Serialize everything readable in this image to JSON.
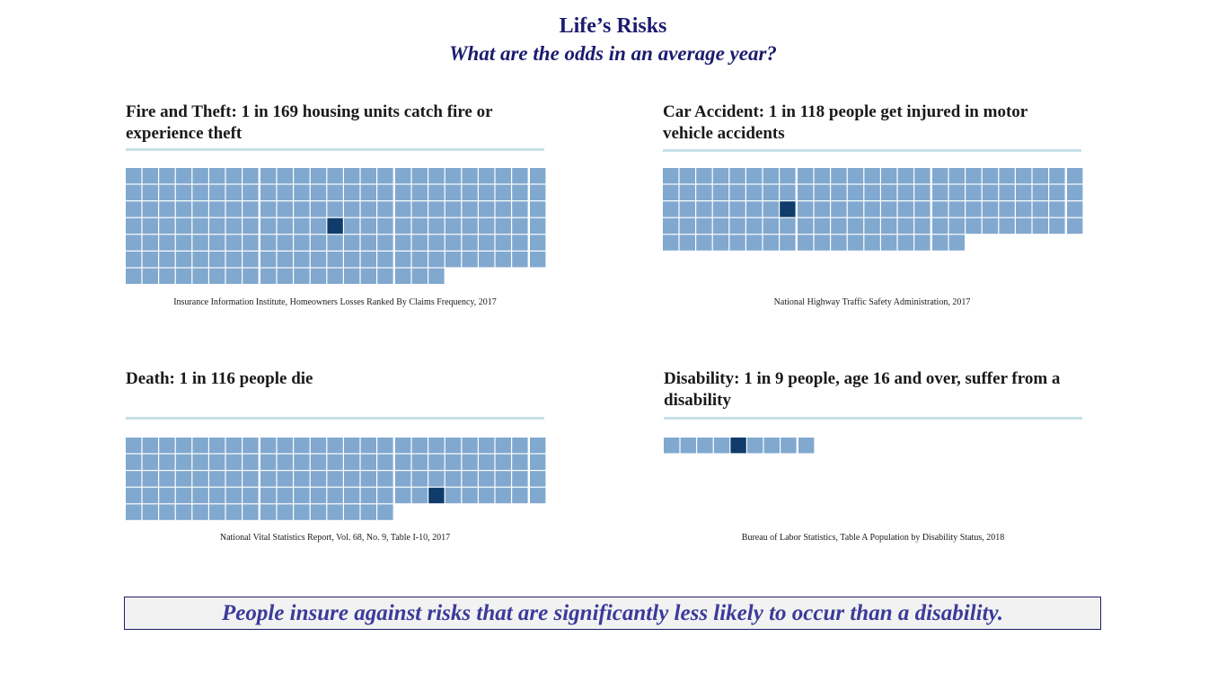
{
  "title": "Life’s Risks",
  "subtitle": "What are the odds in an average year?",
  "colors": {
    "square": "#81a8cf",
    "highlight": "#0f3c6b",
    "rule": "#c5e0e6",
    "title": "#1b1b6e",
    "callout_text": "#3b3b9a"
  },
  "panels": [
    {
      "heading": "Fire and Theft: 1 in 169 housing units catch fire or experience theft",
      "source": "Insurance Information Institute, Homeowners Losses Ranked By Claims Frequency, 2017"
    },
    {
      "heading": "Car Accident: 1 in 118 people get injured in motor vehicle accidents",
      "source": "National Highway Traffic Safety Administration, 2017"
    },
    {
      "heading": "Death: 1 in 116 people die",
      "source": "National Vital Statistics Report, Vol. 68, No. 9, Table I-10,  2017"
    },
    {
      "heading": "Disability: 1 in 9 people, age 16 and over, suffer from a disability",
      "source": "Bureau of Labor Statistics, Table A Population by Disability Status, 2018"
    }
  ],
  "chart_data": [
    {
      "type": "waffle",
      "title": "Fire and Theft: 1 in 169 housing units catch fire or experience theft",
      "total": 169,
      "highlighted": 1
    },
    {
      "type": "waffle",
      "title": "Car Accident: 1 in 118 people get injured in motor vehicle accidents",
      "total": 118,
      "highlighted": 1
    },
    {
      "type": "waffle",
      "title": "Death: 1 in 116 people die",
      "total": 116,
      "highlighted": 1
    },
    {
      "type": "waffle",
      "title": "Disability: 1 in 9 people, age 16 and over, suffer from a disability",
      "total": 9,
      "highlighted": 1
    }
  ],
  "callout": "People insure against risks that are significantly less likely to occur than a disability."
}
